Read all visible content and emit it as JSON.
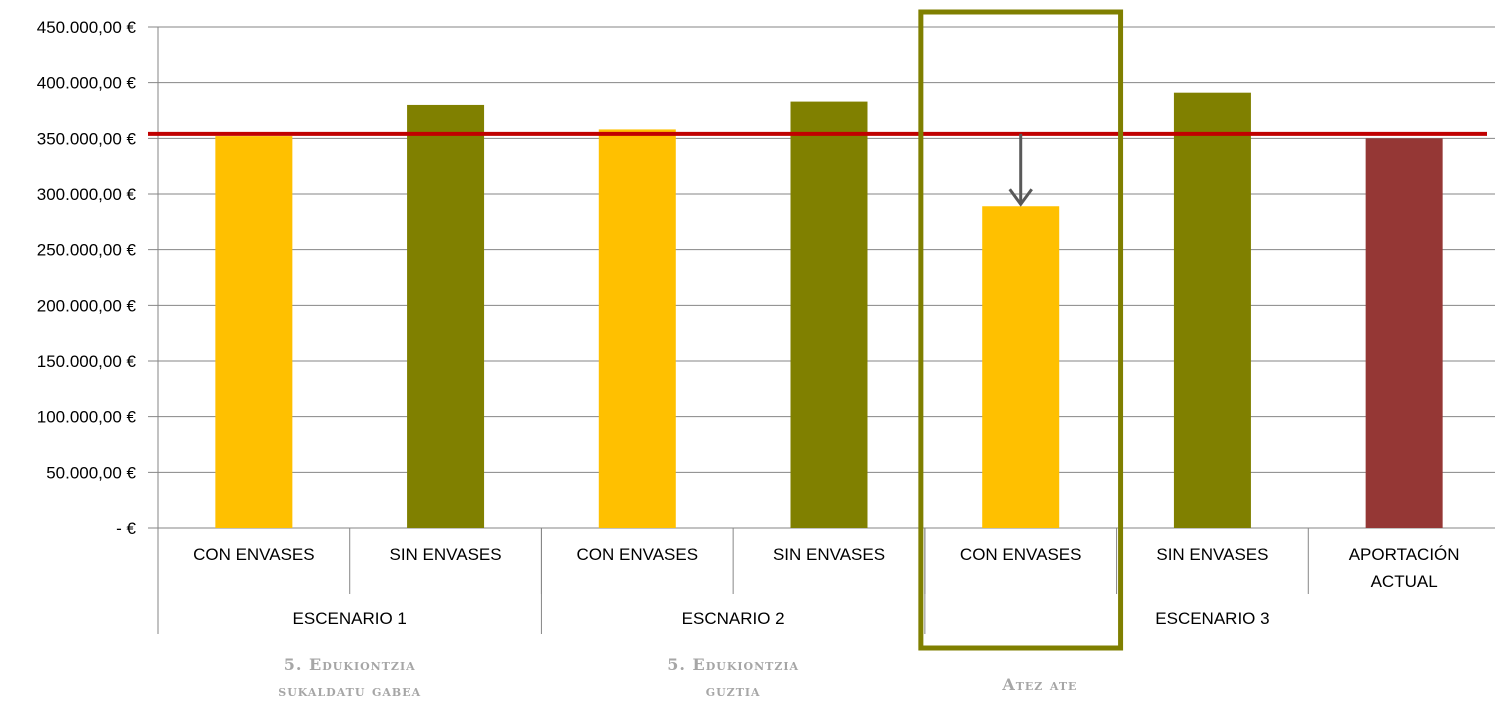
{
  "chart_data": {
    "type": "bar",
    "categories": [
      "CON ENVASES",
      "SIN ENVASES",
      "CON ENVASES",
      "SIN ENVASES",
      "CON ENVASES",
      "SIN ENVASES",
      "APORTACIÓN ACTUAL"
    ],
    "groups": [
      {
        "label": "ESCENARIO 1",
        "span": 2
      },
      {
        "label": "ESCNARIO 2",
        "span": 2
      },
      {
        "label": "ESCENARIO 3",
        "span": 3
      }
    ],
    "values": [
      352000,
      380000,
      358000,
      383000,
      289000,
      391000,
      350000
    ],
    "bar_colors": [
      "#FFC000",
      "#808000",
      "#FFC000",
      "#808000",
      "#FFC000",
      "#808000",
      "#953735"
    ],
    "reference_line": {
      "value": 354000,
      "color": "#C00000"
    },
    "highlight_category_index": 4,
    "highlight_color": "#7F7F00",
    "arrow": {
      "from": 354000,
      "to": 289000,
      "category_index": 4,
      "color": "#595959"
    },
    "y_ticks": [
      "-   €",
      "50.000,00 €",
      "100.000,00 €",
      "150.000,00 €",
      "200.000,00 €",
      "250.000,00 €",
      "300.000,00 €",
      "350.000,00 €",
      "400.000,00 €",
      "450.000,00 €"
    ],
    "ylim": [
      0,
      450000
    ],
    "grid": true,
    "title": "",
    "xlabel": "",
    "ylabel": ""
  },
  "notes": [
    {
      "lines": [
        "5. Edukiontzia",
        "sukaldatu gabea"
      ]
    },
    {
      "lines": [
        "5. Edukiontzia",
        "guztia"
      ]
    },
    {
      "lines": [
        "Atez ate"
      ]
    }
  ]
}
